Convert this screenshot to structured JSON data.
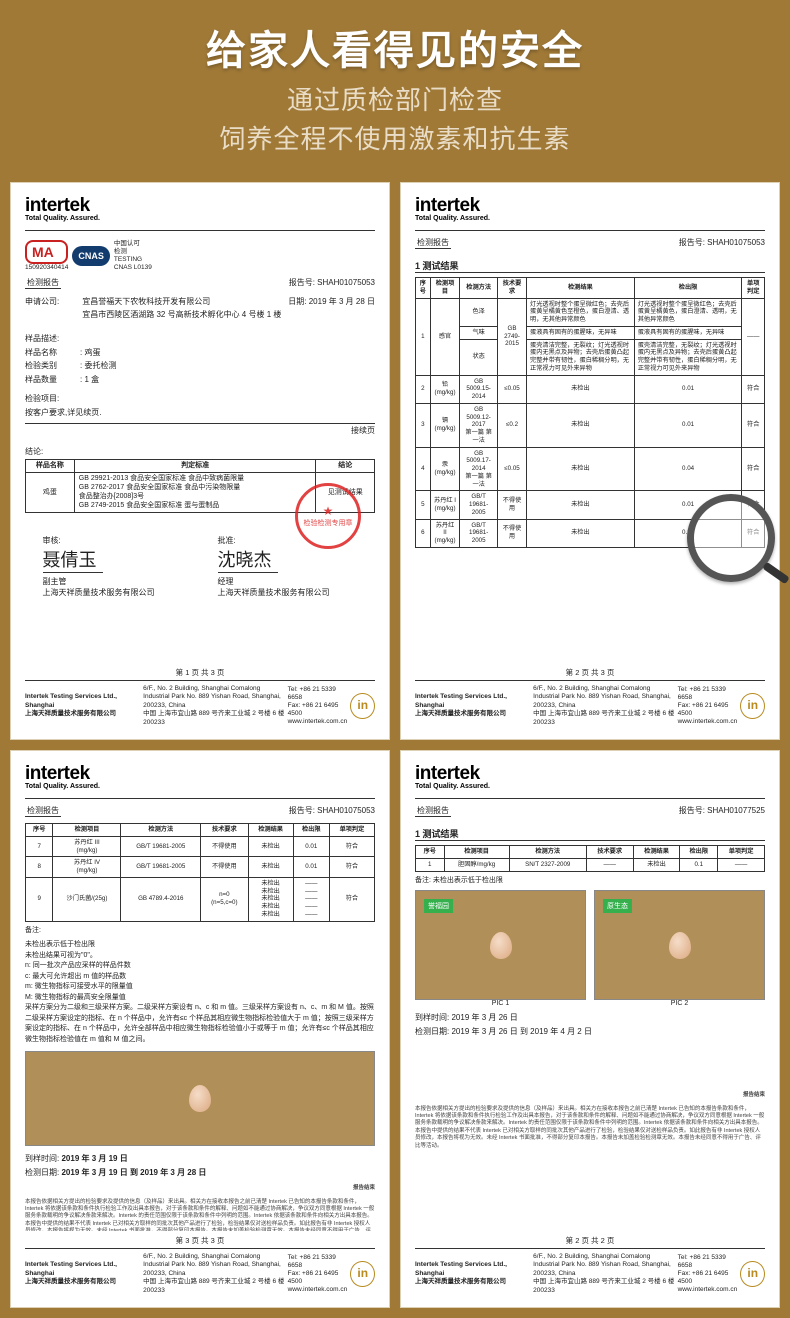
{
  "header": {
    "title": "给家人看得见的安全",
    "sub1": "通过质检部门检查",
    "sub2": "饲养全程不使用激素和抗生素"
  },
  "brand": {
    "name": "intertek",
    "tag": "Total Quality. Assured."
  },
  "footer": {
    "company_en": "Intertek Testing Services Ltd., Shanghai",
    "company_cn": "上海天祥质量技术服务有限公司",
    "addr": "6/F., No. 2 Building, Shanghai Comalong Industrial Park No. 889 Yishan Road, Shanghai, 200233, China\n中国 上海市宜山路 889 号齐来工业城 2 号楼 6 楼 200233",
    "tel": "Tel: +86 21 5339 6658",
    "fax": "Fax: +86 21 6495 4500",
    "web": "www.intertek.com.cn",
    "logo": "in"
  },
  "badges": {
    "ma": "MA",
    "cnas": "CNAS",
    "ma_code": "150920340414",
    "cnas_sub": "中国认可\n检测\nTESTING\nCNAS L0139"
  },
  "r1": {
    "report_label": "检测报告",
    "report_no_label": "报告号:",
    "report_no": "SHAH01075053",
    "applicant_label": "申请公司:",
    "applicant": "宜昌誉福天下农牧科技开发有限公司\n宜昌市西陵区酒湖路 32 号高新技术孵化中心 4 号楼 1 楼",
    "date_label": "日期:",
    "date": "2019 年 3 月 28 日",
    "sample_desc_label": "样品描述:",
    "sample_name_label": "样品名称",
    "sample_name": "鸡蛋",
    "check_type_label": "检验类别",
    "check_type": "委托检测",
    "qty_label": "样品数量",
    "qty": "1 盒",
    "item_label": "检验项目:",
    "item_text": "按客户要求,详见续页.",
    "next_page": "接续页",
    "conclusion_label": "结论:",
    "conclusion_cols": [
      "样品名称",
      "判定标准",
      "结论"
    ],
    "conclusion_sample": "鸡蛋",
    "conclusion_std": "GB 29921-2013  食品安全国家标准 食品中致病菌限量\nGB 2762-2017  食品安全国家标准 食品中污染物限量\n食品整治办[2008]3号\nGB 2749-2015  食品安全国家标准 蛋与蛋制品",
    "conclusion_result": "见测试结果",
    "review_label": "审核:",
    "approve_label": "批准:",
    "sig1_name": "聂倩玉",
    "sig1_title": "副主管\n上海天祥质量技术服务有限公司",
    "sig2_name": "沈晓杰",
    "sig2_title": "经理\n上海天祥质量技术服务有限公司",
    "stamp": "检验检测专用章",
    "page": "第 1 页 共 3 页"
  },
  "r2": {
    "report_label": "检测报告",
    "report_no_label": "报告号:",
    "report_no": "SHAH01075053",
    "section": "1  测试结果",
    "cols": [
      "序号",
      "检测项目",
      "检测方法",
      "技术要求",
      "检测结果",
      "检出限",
      "单项判定"
    ],
    "row1_no": "1",
    "row1_item": "感官",
    "row1_sub": [
      "色泽",
      "气味",
      "状态"
    ],
    "row1_method": "GB 2749-2015",
    "row1_req_color": "灯光透视时整个蛋呈微红色；去壳后蛋黄呈橘黄色至橙色，蛋白澄清、透明，无其他异常颜色",
    "row1_res_color": "灯光透视时整个蛋呈微红色；去壳后蛋黄呈橘黄色，蛋白澄清、透明，无其他异常颜色",
    "row1_req_smell": "蛋液具有固有的蛋腥味，无异味",
    "row1_res_smell": "蛋液具有固有的蛋腥味，无异味",
    "row1_req_state": "蛋壳清洁完整，无裂纹；灯光透视时蛋内无黑点及异物；去壳后蛋黄凸起完整并带有韧性，蛋白稀稠分明，无正常视力可见外来异物",
    "row1_res_state": "蛋壳清洁完整，无裂纹；灯光透视时蛋内无黑点及异物；去壳后蛋黄凸起完整并带有韧性，蛋白稀稠分明，无正常视力可见外来异物",
    "row1_limit": "——",
    "row1_verdict": "符合",
    "rows": [
      {
        "no": "2",
        "item": "铅(mg/kg)",
        "method": "GB 5009.15-2014",
        "req": "≤0.05",
        "res": "未检出",
        "limit": "0.01",
        "verdict": "符合"
      },
      {
        "no": "3",
        "item": "镉(mg/kg)",
        "method": "GB 5009.12-2017\n第一篇 第一法",
        "req": "≤0.2",
        "res": "未检出",
        "limit": "0.01",
        "verdict": "符合"
      },
      {
        "no": "4",
        "item": "汞(mg/kg)",
        "method": "GB 5009.17-2014\n第一篇 第一法",
        "req": "≤0.05",
        "res": "未检出",
        "limit": "0.04",
        "verdict": "符合"
      },
      {
        "no": "5",
        "item": "苏丹红 I\n(mg/kg)",
        "method": "GB/T 19681-2005",
        "req": "不得使用",
        "res": "未检出",
        "limit": "0.01",
        "verdict": "符合"
      },
      {
        "no": "6",
        "item": "苏丹红 II\n(mg/kg)",
        "method": "GB/T 19681-2005",
        "req": "不得使用",
        "res": "未检出",
        "limit": "0.01",
        "verdict": "符合"
      }
    ],
    "page": "第 2 页 共 3 页"
  },
  "r3": {
    "report_label": "检测报告",
    "report_no_label": "报告号:",
    "report_no": "SHAH01075053",
    "cols": [
      "序号",
      "检测项目",
      "检测方法",
      "技术要求",
      "检测结果",
      "检出限",
      "单项判定"
    ],
    "rows": [
      {
        "no": "7",
        "item": "苏丹红 III\n(mg/kg)",
        "method": "GB/T 19681-2005",
        "req": "不得使用",
        "res": "未检出",
        "limit": "0.01",
        "verdict": "符合"
      },
      {
        "no": "8",
        "item": "苏丹红 IV\n(mg/kg)",
        "method": "GB/T 19681-2005",
        "req": "不得使用",
        "res": "未检出",
        "limit": "0.01",
        "verdict": "符合"
      },
      {
        "no": "9",
        "item": "沙门氏菌/(25g)",
        "method": "GB 4789.4-2016",
        "req": "n=0\n(n=5,c=0)",
        "res": "未检出\n未检出\n未检出\n未检出\n未检出",
        "limit": "——\n——\n——\n——\n——",
        "verdict": "符合"
      }
    ],
    "notes_label": "备注:",
    "notes": "未检出表示低于检出限\n未检出结果可视为\"0\"。\nn: 同一批次产品应采样的样品件数\nc: 最大可允许超出 m 值的样品数\nm: 微生物指标可接受水平的限量值\nM: 微生物指标的最高安全限量值\n采样方案分为二级和三级采样方案。二级采样方案设有 n、c 和 m 值。三级采样方案设有 n、c、m 和 M 值。按照二级采样方案设定的指标、在 n 个样品中，允许有≤c 个样品其相应微生物指标检验值大于 m 值；按照三级采样方案设定的指标、在 n 个样品中，允许全部样品中相应微生物指标检验值小于或等于 m 值；允许有≤c 个样品其相应微生物指标检验值在 m 值和 M 值之间。",
    "arrive_label": "到样时间:",
    "arrive": "2019 年 3 月 19 日",
    "test_date_label": "检测日期:",
    "test_date": "2019 年 3 月 19 日 到 2019 年 3 月 28 日",
    "end_label": "报告结束",
    "fine": "本报告依据相关方提出的检验要求及提供的信息（及样品）来出具。相关方在接收本报告之前已清楚 Intertek 已告知的本报告条款和条件，Intertek 将依据该条款和条件执行检验工作及出具本报告，对于该条款和条件的解释、问题如不能通过协商解决，争议双方同意根据 Intertek 一般服务条款载明的争议解决条款来解决。Intertek 的责任范围仅限于该条款和条件中列明的范围。Intertek 依据该条款和条件向相关方出具本报告。本报告中提供的结果不代表 Intertek 已对相关方取样的同批次其他产品进行了检验，检验结果仅对送检样品负责。如此报告有非 Intertek 授权人员修改，本报告将视为无效。未经 Intertek 书面批准，不得部分复印本报告。本报告未加盖检验检测章无效。本报告未经同意不得用于广告、评比等活动。",
    "page": "第 3 页 共 3 页"
  },
  "r4": {
    "report_label": "检测报告",
    "report_no_label": "报告号:",
    "report_no": "SHAH01077525",
    "section": "1  测试结果",
    "cols": [
      "序号",
      "检测项目",
      "检测方法",
      "技术要求",
      "检测结果",
      "检出限",
      "单项判定"
    ],
    "row": {
      "no": "1",
      "item": "胆固醇/mg/kg",
      "method": "SN/T 2327-2009",
      "req": "——",
      "res": "未检出",
      "limit": "0.1",
      "verdict": "——"
    },
    "note": "备注: 未检出表示低于检出限",
    "pic1": "PIC 1",
    "pic2": "PIC 2",
    "tag1": "誉福园",
    "tag2": "原生态",
    "arrive_label": "到样时间:",
    "arrive": "2019 年 3 月 26 日",
    "test_date_label": "检测日期:",
    "test_date": "2019 年 3 月 26 日 到 2019 年 4 月 2 日",
    "end_label": "报告结束",
    "fine": "本报告依据相关方提出的检验要求及提供的信息（及样品）来出具。相关方在接收本报告之前已清楚 Intertek 已告知的本报告条款和条件，Intertek 将依据该条款和条件执行检验工作及出具本报告，对于该条款和条件的解释、问题如不能通过协商解决，争议双方同意根据 Intertek 一般服务条款载明的争议解决条款来解决。Intertek 的责任范围仅限于该条款和条件中列明的范围。Intertek 依据该条款和条件向相关方出具本报告。本报告中提供的结果不代表 Intertek 已对相关方取样的同批次其他产品进行了检验，检验结果仅对送检样品负责。如此报告有非 Intertek 授权人员修改，本报告将视为无效。未经 Intertek 书面批准，不得部分复印本报告。本报告未加盖检验检测章无效。本报告未经同意不得用于广告、评比等活动。",
    "page": "第 2 页 共 2 页"
  },
  "colors": {
    "bg": "#a07937",
    "headline": "#ffffff",
    "subhead": "#e9ddc7",
    "stamp": "#d22222",
    "logo_gold": "#b88a1f",
    "cnas": "#123b6e"
  }
}
